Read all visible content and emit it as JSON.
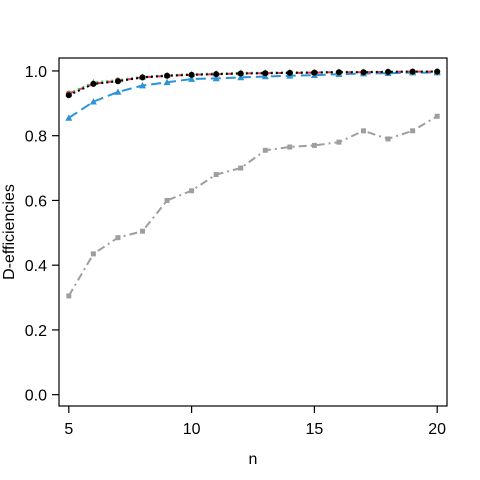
{
  "chart_data": {
    "type": "line",
    "title": "",
    "xlabel": "n",
    "ylabel": "D-efficiencies",
    "xlim": [
      4.6,
      20.4
    ],
    "ylim": [
      -0.035,
      1.04
    ],
    "xticks": [
      5,
      10,
      15,
      20
    ],
    "yticks": [
      0.0,
      0.2,
      0.4,
      0.6,
      0.8,
      1.0
    ],
    "ytick_labels": [
      "0.0",
      "0.2",
      "0.4",
      "0.6",
      "0.8",
      "1.0"
    ],
    "grid": false,
    "legend": null,
    "x": [
      5,
      6,
      7,
      8,
      9,
      10,
      11,
      12,
      13,
      14,
      15,
      16,
      17,
      18,
      19,
      20
    ],
    "series": [
      {
        "color": "#9e9e9e",
        "dash": "dotdash",
        "marker": "square",
        "values": [
          0.305,
          0.435,
          0.485,
          0.505,
          0.6,
          0.63,
          0.68,
          0.7,
          0.755,
          0.765,
          0.77,
          0.78,
          0.815,
          0.79,
          0.815,
          0.86
        ]
      },
      {
        "color": "#2b93d9",
        "dash": "longdash",
        "marker": "triangle",
        "values": [
          0.855,
          0.905,
          0.935,
          0.955,
          0.965,
          0.975,
          0.977,
          0.98,
          0.983,
          0.985,
          0.987,
          0.99,
          0.992,
          0.993,
          0.995,
          0.995
        ]
      },
      {
        "color": "#e8396a",
        "dash": "dashed",
        "marker": "circle",
        "values": [
          0.93,
          0.96,
          0.97,
          0.98,
          0.985,
          0.988,
          0.99,
          0.992,
          0.993,
          0.994,
          0.995,
          0.996,
          0.996,
          0.997,
          0.998,
          0.998
        ]
      },
      {
        "color": "#5cb85c",
        "dash": "dotted",
        "marker": "triangle",
        "values": [
          0.93,
          0.965,
          0.972,
          0.982,
          0.987,
          0.99,
          0.992,
          0.994,
          0.995,
          0.996,
          0.996,
          0.997,
          0.997,
          0.998,
          0.998,
          0.999
        ]
      },
      {
        "color": "#000000",
        "dash": "dotted",
        "marker": "circle",
        "values": [
          0.925,
          0.96,
          0.968,
          0.98,
          0.985,
          0.988,
          0.99,
          0.992,
          0.993,
          0.994,
          0.995,
          0.996,
          0.996,
          0.997,
          0.998,
          0.998
        ]
      }
    ]
  }
}
